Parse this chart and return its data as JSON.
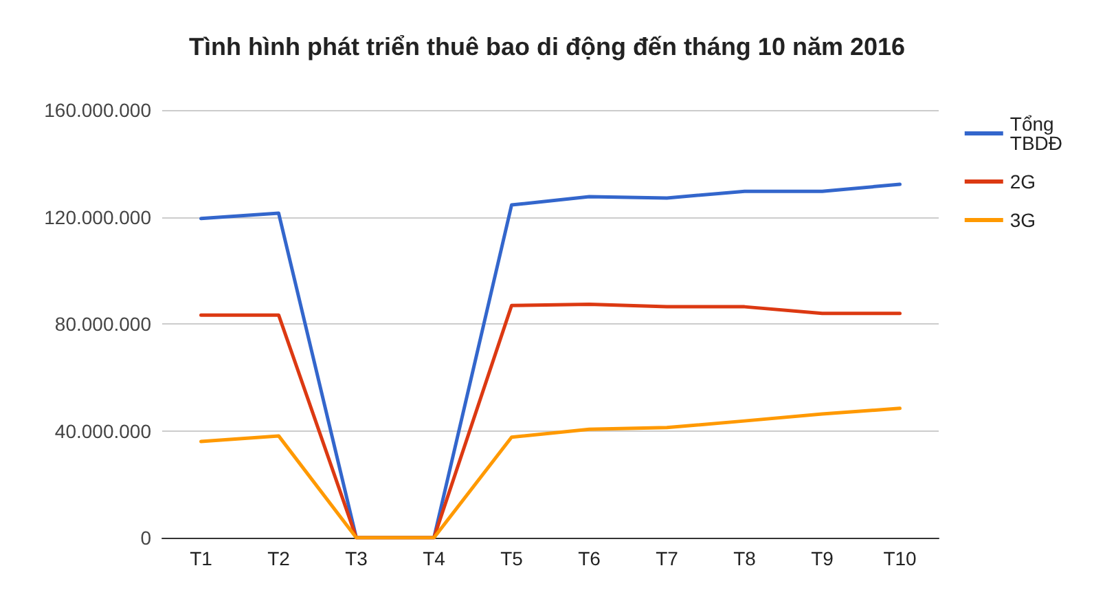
{
  "chart_data": {
    "type": "line",
    "title": "Tình hình phát triển thuê bao di động đến tháng 10 năm 2016",
    "categories": [
      "T1",
      "T2",
      "T3",
      "T4",
      "T5",
      "T6",
      "T7",
      "T8",
      "T9",
      "T10"
    ],
    "series": [
      {
        "name": "Tổng TBDĐ",
        "color": "#3366cc",
        "values": [
          119400000,
          121400000,
          0,
          0,
          124500000,
          127600000,
          127100000,
          129600000,
          129600000,
          132200000
        ]
      },
      {
        "name": "2G",
        "color": "#dc3912",
        "values": [
          83300000,
          83300000,
          0,
          0,
          86900000,
          87300000,
          86400000,
          86400000,
          83900000,
          83900000
        ]
      },
      {
        "name": "3G",
        "color": "#ff9900",
        "values": [
          36000000,
          38100000,
          0,
          0,
          37600000,
          40600000,
          41200000,
          43700000,
          46300000,
          48400000
        ]
      }
    ],
    "ylim": [
      0,
      160000000
    ],
    "yticks": [
      0,
      {
        "value": 40000000,
        "label": "40.000.000"
      },
      {
        "value": 80000000,
        "label": "80.000.000"
      },
      {
        "value": 120000000,
        "label": "120.000.000"
      },
      {
        "value": 160000000,
        "label": "160.000.000"
      }
    ],
    "grid": "y",
    "legend": "right",
    "marker": "none",
    "line_style": "solid"
  }
}
